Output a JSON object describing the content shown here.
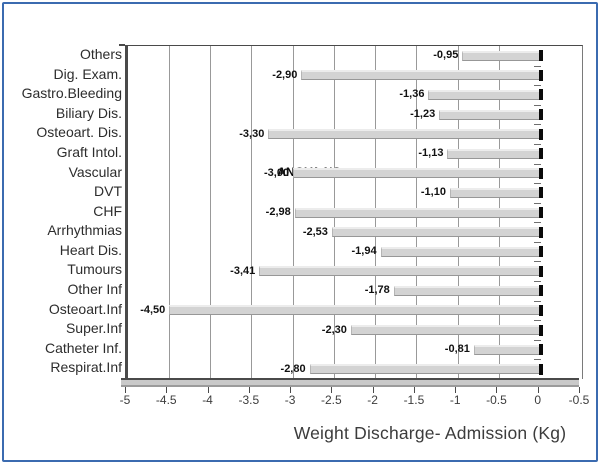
{
  "frame": {
    "border_color": "#3b6bb0"
  },
  "annotation": {
    "text": "ANOVA NS"
  },
  "chart_data": {
    "type": "bar",
    "orientation": "horizontal",
    "title": "",
    "xlabel": "Weight Discharge- Admission (Kg)",
    "ylabel": "",
    "categories": [
      "Others",
      "Dig. Exam.",
      "Gastro.Bleeding",
      "Biliary Dis.",
      "Osteoart. Dis.",
      "Graft Intol.",
      "Vascular",
      "DVT",
      "CHF",
      "Arrhythmias",
      "Heart Dis.",
      "Tumours",
      "Other Inf",
      "Osteoart.Inf",
      "Super.Inf",
      "Catheter Inf.",
      "Respirat.Inf"
    ],
    "values": [
      -0.95,
      -2.9,
      -1.36,
      -1.23,
      -3.3,
      -1.13,
      -3.0,
      -1.1,
      -2.98,
      -2.53,
      -1.94,
      -3.41,
      -1.78,
      -4.5,
      -2.3,
      -0.81,
      -2.8
    ],
    "value_labels": [
      "-0,95",
      "-2,90",
      "-1,36",
      "-1,23",
      "-3,30",
      "-1,13",
      "-3,00",
      "-1,10",
      "-2,98",
      "-2,53",
      "-1,94",
      "-3,41",
      "-1,78",
      "-4,50",
      "-2,30",
      "-0,81",
      "-2,80"
    ],
    "x_tick_labels": [
      "-5",
      "-4.5",
      "-4",
      "-3.5",
      "-3",
      "-2.5",
      "-2",
      "-1.5",
      "-1",
      "-0.5",
      "0",
      "-0.5"
    ],
    "xlim": [
      -5,
      0.5
    ],
    "annotation": "ANOVA NS",
    "grid": true,
    "legend": false,
    "bar_color": "#d3d3d3",
    "gridline_color": "#999999",
    "zero_axis_color": "#0a0a0a"
  }
}
